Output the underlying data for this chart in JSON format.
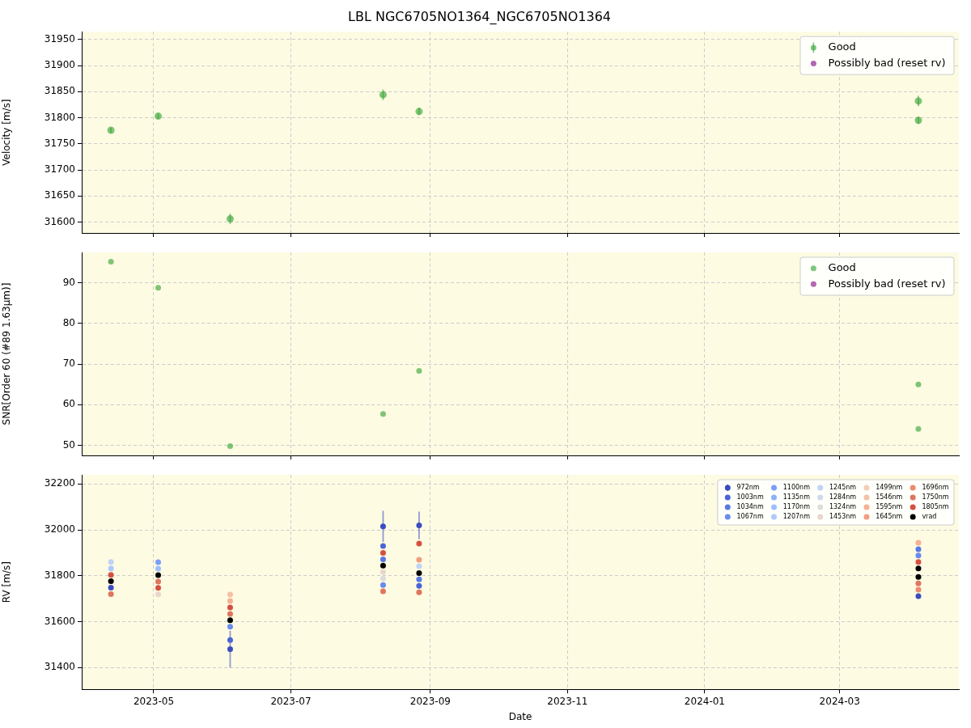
{
  "chart_data": [
    {
      "type": "scatter",
      "title": "LBL NGC6705NO1364_NGC6705NO1364",
      "ylabel": "Velocity [m/s]",
      "x": [
        "2023-04-12",
        "2023-05-03",
        "2023-06-04",
        "2023-08-11",
        "2023-08-27",
        "2024-04-05",
        "2024-04-05"
      ],
      "xlim": [
        "2023-03-30",
        "2024-04-23"
      ],
      "xticks": [
        "2023-05",
        "2023-07",
        "2023-09",
        "2023-11",
        "2024-01",
        "2024-03"
      ],
      "ylim": [
        31579,
        31965
      ],
      "yticks": [
        31600,
        31650,
        31700,
        31750,
        31800,
        31850,
        31900,
        31950
      ],
      "series": [
        {
          "name": "Good",
          "color": "#2ca02c",
          "values": [
            31776,
            31803,
            31606,
            31844,
            31812,
            31832,
            31795
          ],
          "errors": [
            5,
            5,
            10,
            10,
            7,
            10,
            7
          ]
        },
        {
          "name": "Possibly bad (reset rv)",
          "color": "#800080",
          "values": [
            null,
            null,
            null,
            null,
            null,
            null,
            null
          ]
        }
      ],
      "grid": true,
      "legend": "top right",
      "marker": "circle",
      "tick_labels": "y"
    },
    {
      "type": "scatter",
      "ylabel": "SNR[Order 60 (#89 1.63μm)]",
      "x": [
        "2023-04-12",
        "2023-05-03",
        "2023-06-04",
        "2023-08-11",
        "2023-08-27",
        "2024-04-05",
        "2024-04-05"
      ],
      "xlim": [
        "2023-03-30",
        "2024-04-23"
      ],
      "xticks": [
        "2023-05",
        "2023-07",
        "2023-09",
        "2023-11",
        "2024-01",
        "2024-03"
      ],
      "ylim": [
        47.5,
        97.5
      ],
      "yticks": [
        50,
        60,
        70,
        80,
        90
      ],
      "series": [
        {
          "name": "Good",
          "color": "#2ca02c",
          "values": [
            95.2,
            88.8,
            49.8,
            57.7,
            68.3,
            65,
            54
          ]
        },
        {
          "name": "Possibly bad (reset rv)",
          "color": "#800080",
          "values": [
            null,
            null,
            null,
            null,
            null,
            null,
            null
          ]
        }
      ],
      "grid": true,
      "legend": "top right",
      "marker": "circle",
      "tick_labels": "y"
    },
    {
      "type": "scatter",
      "xlabel": "Date",
      "ylabel": "RV [m/s]",
      "x": [
        "2023-04-12",
        "2023-05-03",
        "2023-06-04",
        "2023-08-11",
        "2023-08-27",
        "2024-04-05",
        "2024-04-05"
      ],
      "xlim": [
        "2023-03-30",
        "2024-04-23"
      ],
      "xticks": [
        "2023-05",
        "2023-07",
        "2023-09",
        "2023-11",
        "2024-01",
        "2024-03"
      ],
      "ylim": [
        31305,
        32240
      ],
      "yticks": [
        31400,
        31600,
        31800,
        32000,
        32200
      ],
      "series": [
        {
          "name": "972nm",
          "color": "#3b4cc0",
          "values": [
            31748,
            null,
            31480,
            32015,
            32020,
            31711,
            null
          ],
          "errors": [
            null,
            null,
            80,
            68,
            60,
            null,
            null
          ]
        },
        {
          "name": "1003nm",
          "color": "#4b64d5",
          "values": [
            null,
            null,
            31520,
            31930,
            31756,
            null,
            null
          ]
        },
        {
          "name": "1034nm",
          "color": "#5a78e4",
          "values": [
            null,
            null,
            null,
            31872,
            31784,
            null,
            31916
          ]
        },
        {
          "name": "1067nm",
          "color": "#6a8bef",
          "values": [
            null,
            null,
            31578,
            31760,
            null,
            31888,
            null
          ]
        },
        {
          "name": "1100nm",
          "color": "#7b9ff9",
          "values": [
            null,
            31859,
            null,
            null,
            null,
            null,
            null
          ]
        },
        {
          "name": "1135nm",
          "color": "#8db0fe",
          "values": [
            null,
            null,
            null,
            null,
            null,
            null,
            null
          ]
        },
        {
          "name": "1170nm",
          "color": "#9ebeff",
          "values": [
            null,
            31831,
            null,
            null,
            null,
            null,
            null
          ]
        },
        {
          "name": "1207nm",
          "color": "#aec9fc",
          "values": [
            31832,
            null,
            null,
            null,
            null,
            null,
            null
          ]
        },
        {
          "name": "1245nm",
          "color": "#bfd3f6",
          "values": [
            31860,
            null,
            null,
            null,
            31842,
            null,
            null
          ]
        },
        {
          "name": "1284nm",
          "color": "#cedaeb",
          "values": [
            null,
            null,
            null,
            null,
            null,
            null,
            null
          ]
        },
        {
          "name": "1324nm",
          "color": "#dddcdc",
          "values": [
            null,
            null,
            null,
            31788,
            null,
            null,
            null
          ]
        },
        {
          "name": "1453nm",
          "color": "#e8d6cc",
          "values": [
            null,
            31719,
            null,
            31816,
            null,
            null,
            null
          ]
        },
        {
          "name": "1499nm",
          "color": "#f1cdba",
          "values": [
            null,
            null,
            null,
            null,
            null,
            null,
            null
          ]
        },
        {
          "name": "1546nm",
          "color": "#f5c0a7",
          "values": [
            null,
            null,
            31718,
            null,
            null,
            null,
            null
          ]
        },
        {
          "name": "1595nm",
          "color": "#f6b094",
          "values": [
            null,
            null,
            31690,
            null,
            null,
            31944,
            null
          ]
        },
        {
          "name": "1645nm",
          "color": "#f39d80",
          "values": [
            null,
            null,
            null,
            null,
            31870,
            null,
            null
          ]
        },
        {
          "name": "1696nm",
          "color": "#ec8a6d",
          "values": [
            null,
            null,
            null,
            null,
            null,
            31739,
            null
          ]
        },
        {
          "name": "1750nm",
          "color": "#e0755f",
          "values": [
            31720,
            31775,
            31634,
            31732,
            31728,
            null,
            31767
          ]
        },
        {
          "name": "1805nm",
          "color": "#d55042",
          "values": [
            31804,
            31747,
            31662,
            31900,
            31940,
            31860,
            null
          ]
        },
        {
          "name": "vrad",
          "color": "#000000",
          "values": [
            31776,
            31803,
            31606,
            31844,
            31812,
            31832,
            31795
          ]
        }
      ],
      "grid": true,
      "legend": "top right",
      "marker": "circle"
    }
  ]
}
